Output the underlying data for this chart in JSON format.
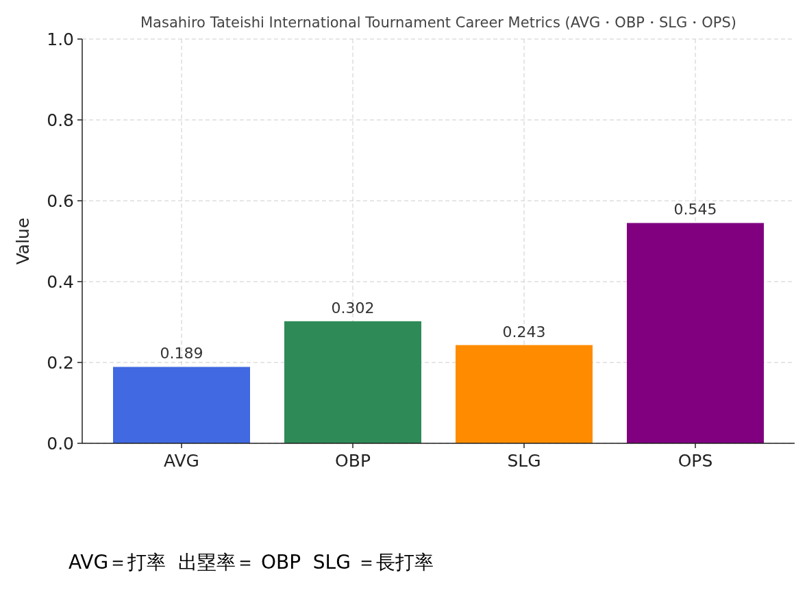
{
  "chart_data": {
    "type": "bar",
    "title": "Masahiro Tateishi International Tournament Career Metrics (AVG・OBP・SLG・OPS)",
    "ylabel": "Value",
    "categories": [
      "AVG",
      "OBP",
      "SLG",
      "OPS"
    ],
    "values": [
      0.189,
      0.302,
      0.243,
      0.545
    ],
    "colors": [
      "#4169e1",
      "#2e8b57",
      "#ff8c00",
      "#800080"
    ],
    "ylim": [
      0,
      1
    ],
    "yticks": [
      {
        "value": 0,
        "label": "0.0"
      },
      {
        "value": 0.2,
        "label": "0.2"
      },
      {
        "value": 0.4,
        "label": "0.4"
      },
      {
        "value": 0.6,
        "label": "0.6"
      },
      {
        "value": 0.8,
        "label": "0.8"
      },
      {
        "value": 1,
        "label": "1.0"
      }
    ],
    "grid": true,
    "data_labels": true,
    "annotations": [
      "AVG＝打率  出塁率＝ OBP  SLG ＝長打率"
    ]
  }
}
